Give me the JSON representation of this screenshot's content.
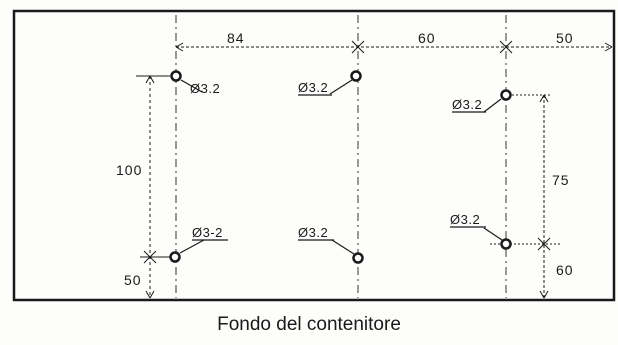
{
  "drawing": {
    "dimensions": {
      "spacing_1": "84",
      "spacing_2": "60",
      "spacing_3": "50",
      "height_total": "100",
      "height_right": "75",
      "offset_bottom_left": "50",
      "offset_bottom_right": "60"
    },
    "holes": {
      "top_left": "Ø3.2",
      "top_middle": "Ø3.2",
      "top_right": "Ø3.2",
      "bottom_left": "Ø3-2",
      "bottom_middle": "Ø3.2",
      "bottom_right": "Ø3.2"
    }
  },
  "caption": "Fondo del contenitore",
  "colors": {
    "ink": "#1a1a1a",
    "paper": "#fdfdfb"
  }
}
